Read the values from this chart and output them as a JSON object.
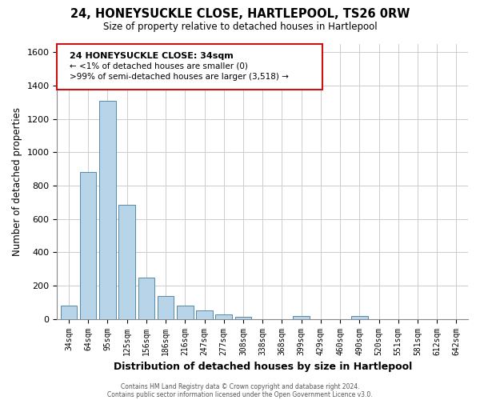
{
  "title": "24, HONEYSUCKLE CLOSE, HARTLEPOOL, TS26 0RW",
  "subtitle": "Size of property relative to detached houses in Hartlepool",
  "xlabel": "Distribution of detached houses by size in Hartlepool",
  "ylabel": "Number of detached properties",
  "bar_color": "#b8d4e8",
  "bar_edge_color": "#5588aa",
  "background_color": "#ffffff",
  "grid_color": "#cccccc",
  "categories": [
    "34sqm",
    "64sqm",
    "95sqm",
    "125sqm",
    "156sqm",
    "186sqm",
    "216sqm",
    "247sqm",
    "277sqm",
    "308sqm",
    "338sqm",
    "368sqm",
    "399sqm",
    "429sqm",
    "460sqm",
    "490sqm",
    "520sqm",
    "551sqm",
    "581sqm",
    "612sqm",
    "642sqm"
  ],
  "values": [
    80,
    880,
    1310,
    685,
    250,
    140,
    80,
    50,
    25,
    15,
    0,
    0,
    18,
    0,
    0,
    18,
    0,
    0,
    0,
    0,
    0
  ],
  "ylim": [
    0,
    1650
  ],
  "yticks": [
    0,
    200,
    400,
    600,
    800,
    1000,
    1200,
    1400,
    1600
  ],
  "annotation_title": "24 HONEYSUCKLE CLOSE: 34sqm",
  "annotation_line1": "← <1% of detached houses are smaller (0)",
  "annotation_line2": ">99% of semi-detached houses are larger (3,518) →",
  "footer_line1": "Contains HM Land Registry data © Crown copyright and database right 2024.",
  "footer_line2": "Contains public sector information licensed under the Open Government Licence v3.0."
}
